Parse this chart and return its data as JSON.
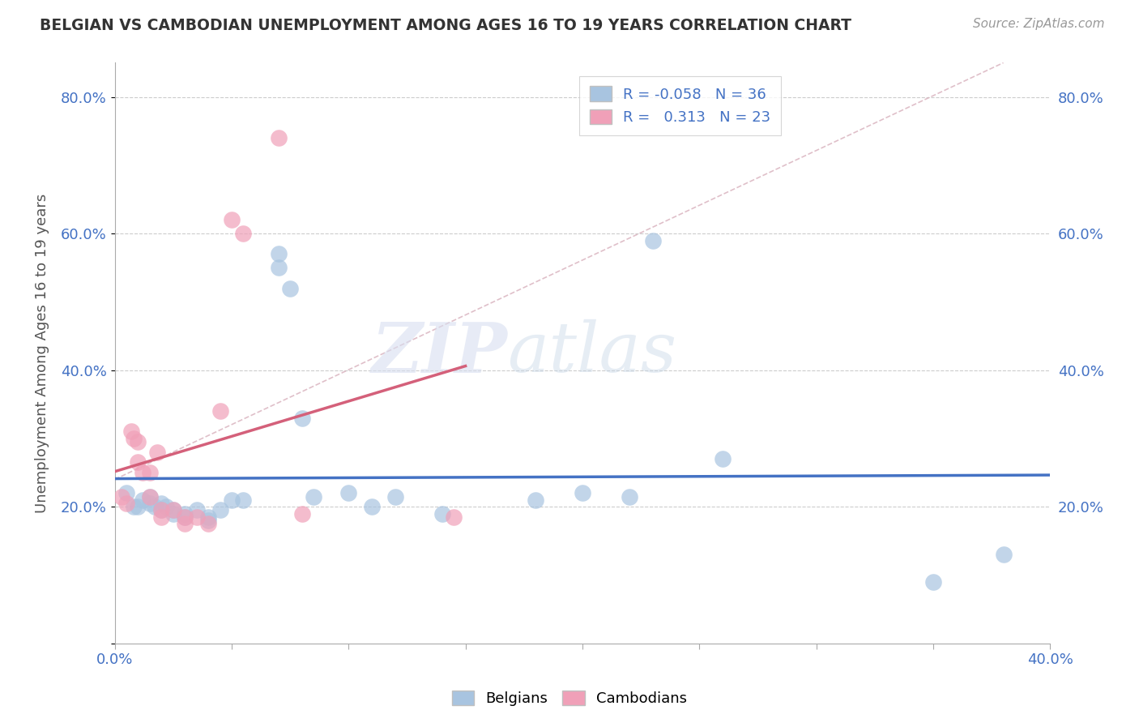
{
  "title": "BELGIAN VS CAMBODIAN UNEMPLOYMENT AMONG AGES 16 TO 19 YEARS CORRELATION CHART",
  "source": "Source: ZipAtlas.com",
  "ylabel": "Unemployment Among Ages 16 to 19 years",
  "xlim": [
    0.0,
    0.4
  ],
  "ylim": [
    0.0,
    0.85
  ],
  "xticks": [
    0.0,
    0.05,
    0.1,
    0.15,
    0.2,
    0.25,
    0.3,
    0.35,
    0.4
  ],
  "yticks": [
    0.0,
    0.2,
    0.4,
    0.6,
    0.8
  ],
  "xticklabels": [
    "0.0%",
    "",
    "",
    "",
    "",
    "",
    "",
    "",
    "40.0%"
  ],
  "yticklabels": [
    "",
    "20.0%",
    "40.0%",
    "60.0%",
    "80.0%"
  ],
  "legend_r_belgian": "-0.058",
  "legend_n_belgian": "36",
  "legend_r_cambodian": "0.313",
  "legend_n_cambodian": "23",
  "belgian_color": "#a8c4e0",
  "cambodian_color": "#f0a0b8",
  "trend_belgian_color": "#4472c4",
  "trend_cambodian_color": "#d4607a",
  "diag_line_color": "#d8b0bc",
  "watermark_zip": "ZIP",
  "watermark_atlas": "atlas",
  "belgian_x": [
    0.005,
    0.008,
    0.01,
    0.012,
    0.015,
    0.015,
    0.017,
    0.02,
    0.02,
    0.022,
    0.025,
    0.025,
    0.03,
    0.03,
    0.035,
    0.04,
    0.04,
    0.045,
    0.05,
    0.055,
    0.07,
    0.07,
    0.075,
    0.08,
    0.085,
    0.1,
    0.11,
    0.12,
    0.14,
    0.18,
    0.2,
    0.22,
    0.23,
    0.26,
    0.35,
    0.38
  ],
  "belgian_y": [
    0.22,
    0.2,
    0.2,
    0.21,
    0.215,
    0.205,
    0.2,
    0.195,
    0.205,
    0.2,
    0.195,
    0.19,
    0.19,
    0.185,
    0.195,
    0.185,
    0.18,
    0.195,
    0.21,
    0.21,
    0.57,
    0.55,
    0.52,
    0.33,
    0.215,
    0.22,
    0.2,
    0.215,
    0.19,
    0.21,
    0.22,
    0.215,
    0.59,
    0.27,
    0.09,
    0.13
  ],
  "cambodian_x": [
    0.003,
    0.005,
    0.007,
    0.008,
    0.01,
    0.01,
    0.012,
    0.015,
    0.015,
    0.018,
    0.02,
    0.02,
    0.025,
    0.03,
    0.03,
    0.035,
    0.04,
    0.045,
    0.05,
    0.055,
    0.07,
    0.08,
    0.145
  ],
  "cambodian_y": [
    0.215,
    0.205,
    0.31,
    0.3,
    0.295,
    0.265,
    0.25,
    0.25,
    0.215,
    0.28,
    0.195,
    0.185,
    0.195,
    0.185,
    0.175,
    0.185,
    0.175,
    0.34,
    0.62,
    0.6,
    0.74,
    0.19,
    0.185
  ],
  "grid_color": "#cccccc",
  "background_color": "#ffffff",
  "title_color": "#333333",
  "axis_label_color": "#555555",
  "tick_label_color": "#4472c4",
  "r_value_color": "#4472c4"
}
